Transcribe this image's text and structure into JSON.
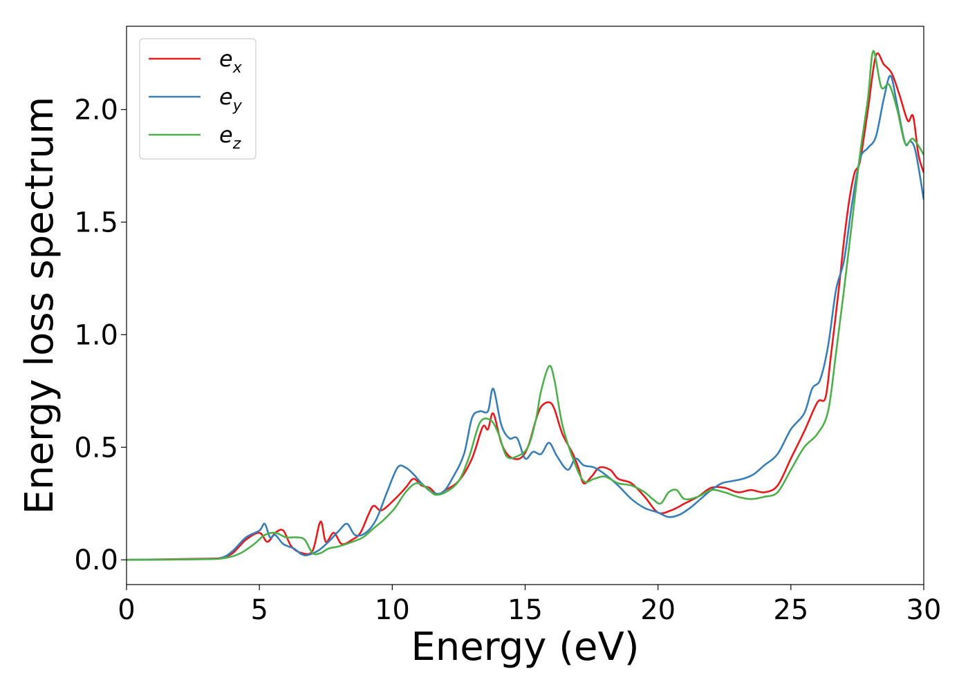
{
  "chart_data": {
    "type": "line",
    "title": "",
    "xlabel": "Energy (eV)",
    "ylabel": "Energy loss spectrum",
    "xlim": [
      0,
      30
    ],
    "ylim": [
      -0.11,
      2.37
    ],
    "xticks": [
      0,
      5,
      10,
      15,
      20,
      25,
      30
    ],
    "xtick_labels": [
      "0",
      "5",
      "10",
      "15",
      "20",
      "25",
      "30"
    ],
    "yticks": [
      0.0,
      0.5,
      1.0,
      1.5,
      2.0
    ],
    "ytick_labels": [
      "0.0",
      "0.5",
      "1.0",
      "1.5",
      "2.0"
    ],
    "grid": false,
    "legend_position": "top-left",
    "series": [
      {
        "name": "e",
        "subscript": "x",
        "color": "#e41a1c",
        "points": [
          [
            0,
            0
          ],
          [
            3,
            0.005
          ],
          [
            3.6,
            0.01
          ],
          [
            4,
            0.03
          ],
          [
            4.5,
            0.09
          ],
          [
            5,
            0.12
          ],
          [
            5.3,
            0.08
          ],
          [
            5.6,
            0.12
          ],
          [
            5.9,
            0.13
          ],
          [
            6.2,
            0.06
          ],
          [
            6.6,
            0.03
          ],
          [
            7,
            0.04
          ],
          [
            7.3,
            0.17
          ],
          [
            7.5,
            0.08
          ],
          [
            7.8,
            0.12
          ],
          [
            8.1,
            0.07
          ],
          [
            8.5,
            0.09
          ],
          [
            8.8,
            0.12
          ],
          [
            9.1,
            0.2
          ],
          [
            9.3,
            0.24
          ],
          [
            9.6,
            0.22
          ],
          [
            10.1,
            0.27
          ],
          [
            10.5,
            0.32
          ],
          [
            10.8,
            0.36
          ],
          [
            11.1,
            0.33
          ],
          [
            11.4,
            0.32
          ],
          [
            11.7,
            0.29
          ],
          [
            12,
            0.31
          ],
          [
            12.5,
            0.35
          ],
          [
            13,
            0.45
          ],
          [
            13.4,
            0.59
          ],
          [
            13.6,
            0.58
          ],
          [
            13.8,
            0.65
          ],
          [
            14.1,
            0.52
          ],
          [
            14.4,
            0.46
          ],
          [
            14.8,
            0.45
          ],
          [
            15.1,
            0.5
          ],
          [
            15.4,
            0.62
          ],
          [
            15.6,
            0.68
          ],
          [
            15.9,
            0.7
          ],
          [
            16.1,
            0.67
          ],
          [
            16.4,
            0.56
          ],
          [
            16.8,
            0.47
          ],
          [
            17,
            0.41
          ],
          [
            17.2,
            0.34
          ],
          [
            17.5,
            0.37
          ],
          [
            17.8,
            0.41
          ],
          [
            18.2,
            0.4
          ],
          [
            18.5,
            0.36
          ],
          [
            19,
            0.34
          ],
          [
            19.5,
            0.28
          ],
          [
            20,
            0.21
          ],
          [
            20.5,
            0.22
          ],
          [
            21,
            0.25
          ],
          [
            21.5,
            0.28
          ],
          [
            22,
            0.32
          ],
          [
            22.5,
            0.32
          ],
          [
            23,
            0.3
          ],
          [
            23.5,
            0.31
          ],
          [
            24,
            0.3
          ],
          [
            24.5,
            0.33
          ],
          [
            25,
            0.45
          ],
          [
            25.5,
            0.57
          ],
          [
            26,
            0.7
          ],
          [
            26.3,
            0.72
          ],
          [
            26.5,
            0.9
          ],
          [
            26.8,
            1.2
          ],
          [
            27,
            1.42
          ],
          [
            27.2,
            1.6
          ],
          [
            27.4,
            1.72
          ],
          [
            27.6,
            1.77
          ],
          [
            27.9,
            2.0
          ],
          [
            28.2,
            2.24
          ],
          [
            28.5,
            2.2
          ],
          [
            28.8,
            2.16
          ],
          [
            29.1,
            2.06
          ],
          [
            29.4,
            1.95
          ],
          [
            29.6,
            1.97
          ],
          [
            29.8,
            1.8
          ],
          [
            30,
            1.72
          ]
        ]
      },
      {
        "name": "e",
        "subscript": "y",
        "color": "#377eb8",
        "points": [
          [
            0,
            0
          ],
          [
            3,
            0.003
          ],
          [
            3.6,
            0.01
          ],
          [
            4,
            0.04
          ],
          [
            4.5,
            0.1
          ],
          [
            5,
            0.13
          ],
          [
            5.2,
            0.16
          ],
          [
            5.4,
            0.1
          ],
          [
            5.6,
            0.11
          ],
          [
            5.9,
            0.07
          ],
          [
            6.3,
            0.05
          ],
          [
            6.7,
            0.02
          ],
          [
            7.2,
            0.04
          ],
          [
            7.6,
            0.08
          ],
          [
            8,
            0.13
          ],
          [
            8.3,
            0.16
          ],
          [
            8.6,
            0.11
          ],
          [
            9,
            0.12
          ],
          [
            9.4,
            0.18
          ],
          [
            9.8,
            0.3
          ],
          [
            10.2,
            0.41
          ],
          [
            10.5,
            0.41
          ],
          [
            10.8,
            0.38
          ],
          [
            11.1,
            0.34
          ],
          [
            11.5,
            0.3
          ],
          [
            11.9,
            0.3
          ],
          [
            12.3,
            0.37
          ],
          [
            12.7,
            0.47
          ],
          [
            13,
            0.63
          ],
          [
            13.3,
            0.66
          ],
          [
            13.6,
            0.66
          ],
          [
            13.8,
            0.76
          ],
          [
            14.1,
            0.6
          ],
          [
            14.4,
            0.54
          ],
          [
            14.7,
            0.54
          ],
          [
            15,
            0.45
          ],
          [
            15.3,
            0.48
          ],
          [
            15.6,
            0.47
          ],
          [
            15.9,
            0.52
          ],
          [
            16.2,
            0.46
          ],
          [
            16.6,
            0.4
          ],
          [
            16.9,
            0.45
          ],
          [
            17.2,
            0.42
          ],
          [
            17.6,
            0.41
          ],
          [
            18,
            0.38
          ],
          [
            18.5,
            0.33
          ],
          [
            19,
            0.27
          ],
          [
            19.5,
            0.23
          ],
          [
            20,
            0.21
          ],
          [
            20.4,
            0.19
          ],
          [
            20.8,
            0.2
          ],
          [
            21.2,
            0.23
          ],
          [
            21.6,
            0.27
          ],
          [
            22,
            0.31
          ],
          [
            22.4,
            0.34
          ],
          [
            22.8,
            0.35
          ],
          [
            23.2,
            0.36
          ],
          [
            23.6,
            0.38
          ],
          [
            24,
            0.42
          ],
          [
            24.5,
            0.47
          ],
          [
            25,
            0.58
          ],
          [
            25.5,
            0.65
          ],
          [
            25.8,
            0.76
          ],
          [
            26.1,
            0.8
          ],
          [
            26.4,
            0.95
          ],
          [
            26.7,
            1.2
          ],
          [
            27,
            1.33
          ],
          [
            27.3,
            1.58
          ],
          [
            27.6,
            1.78
          ],
          [
            27.9,
            1.83
          ],
          [
            28.2,
            1.88
          ],
          [
            28.5,
            2.05
          ],
          [
            28.75,
            2.15
          ],
          [
            29,
            2.02
          ],
          [
            29.3,
            1.85
          ],
          [
            29.5,
            1.86
          ],
          [
            29.7,
            1.81
          ],
          [
            30,
            1.6
          ]
        ]
      },
      {
        "name": "e",
        "subscript": "z",
        "color": "#4daf4a",
        "points": [
          [
            0,
            0
          ],
          [
            3,
            0.003
          ],
          [
            3.8,
            0.01
          ],
          [
            4.3,
            0.03
          ],
          [
            4.8,
            0.07
          ],
          [
            5.2,
            0.11
          ],
          [
            5.6,
            0.12
          ],
          [
            6,
            0.1
          ],
          [
            6.4,
            0.1
          ],
          [
            6.7,
            0.09
          ],
          [
            7,
            0.03
          ],
          [
            7.3,
            0.03
          ],
          [
            7.6,
            0.05
          ],
          [
            8,
            0.06
          ],
          [
            8.5,
            0.08
          ],
          [
            8.9,
            0.1
          ],
          [
            9.3,
            0.14
          ],
          [
            9.7,
            0.18
          ],
          [
            10.1,
            0.23
          ],
          [
            10.5,
            0.3
          ],
          [
            10.9,
            0.34
          ],
          [
            11.3,
            0.32
          ],
          [
            11.6,
            0.29
          ],
          [
            12,
            0.3
          ],
          [
            12.5,
            0.35
          ],
          [
            12.9,
            0.46
          ],
          [
            13.3,
            0.61
          ],
          [
            13.7,
            0.62
          ],
          [
            14,
            0.56
          ],
          [
            14.3,
            0.46
          ],
          [
            14.7,
            0.46
          ],
          [
            15.1,
            0.5
          ],
          [
            15.4,
            0.62
          ],
          [
            15.6,
            0.75
          ],
          [
            15.9,
            0.86
          ],
          [
            16.1,
            0.8
          ],
          [
            16.4,
            0.6
          ],
          [
            16.8,
            0.45
          ],
          [
            17.2,
            0.35
          ],
          [
            17.6,
            0.36
          ],
          [
            18,
            0.37
          ],
          [
            18.5,
            0.34
          ],
          [
            19,
            0.33
          ],
          [
            19.5,
            0.3
          ],
          [
            19.8,
            0.27
          ],
          [
            20.1,
            0.25
          ],
          [
            20.4,
            0.3
          ],
          [
            20.7,
            0.31
          ],
          [
            21,
            0.27
          ],
          [
            21.5,
            0.28
          ],
          [
            22,
            0.31
          ],
          [
            22.5,
            0.3
          ],
          [
            23,
            0.28
          ],
          [
            23.5,
            0.27
          ],
          [
            24,
            0.28
          ],
          [
            24.5,
            0.3
          ],
          [
            25,
            0.4
          ],
          [
            25.5,
            0.5
          ],
          [
            26,
            0.56
          ],
          [
            26.4,
            0.66
          ],
          [
            26.7,
            0.92
          ],
          [
            27,
            1.2
          ],
          [
            27.3,
            1.5
          ],
          [
            27.6,
            1.8
          ],
          [
            27.9,
            2.05
          ],
          [
            28.1,
            2.26
          ],
          [
            28.4,
            2.1
          ],
          [
            28.7,
            2.11
          ],
          [
            29,
            2.0
          ],
          [
            29.3,
            1.85
          ],
          [
            29.6,
            1.87
          ],
          [
            30,
            1.8
          ]
        ]
      }
    ]
  }
}
